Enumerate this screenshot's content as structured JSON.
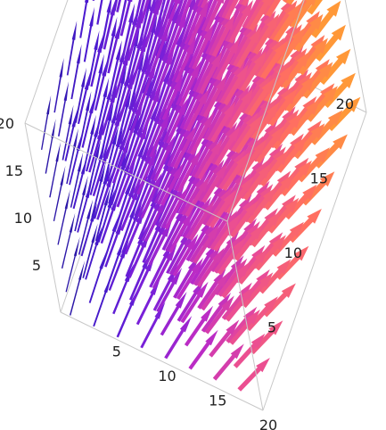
{
  "chart_data": {
    "type": "3d-vector-field",
    "title": "",
    "axes": {
      "x": {
        "label": "",
        "range": [
          0,
          20
        ],
        "ticks": [
          5,
          10,
          15,
          20
        ]
      },
      "y": {
        "label": "",
        "range": [
          0,
          20
        ],
        "ticks": [
          5,
          10,
          15,
          20
        ]
      },
      "z": {
        "label": "",
        "range": [
          0,
          20
        ],
        "ticks": [
          5,
          10,
          15,
          20
        ]
      }
    },
    "box_visible": true,
    "grid": false,
    "legend": "none",
    "color_function": {
      "name": "magnitude gradient",
      "stops": [
        "#1a1590",
        "#4a1ad0",
        "#7a20d8",
        "#b82ac8",
        "#e84a98",
        "#ff7060",
        "#ffb020"
      ]
    },
    "arrow_shape": "flat ribbon",
    "field_description": "vector field sampled on a 3D grid; arrow color and thickness scale with magnitude"
  }
}
